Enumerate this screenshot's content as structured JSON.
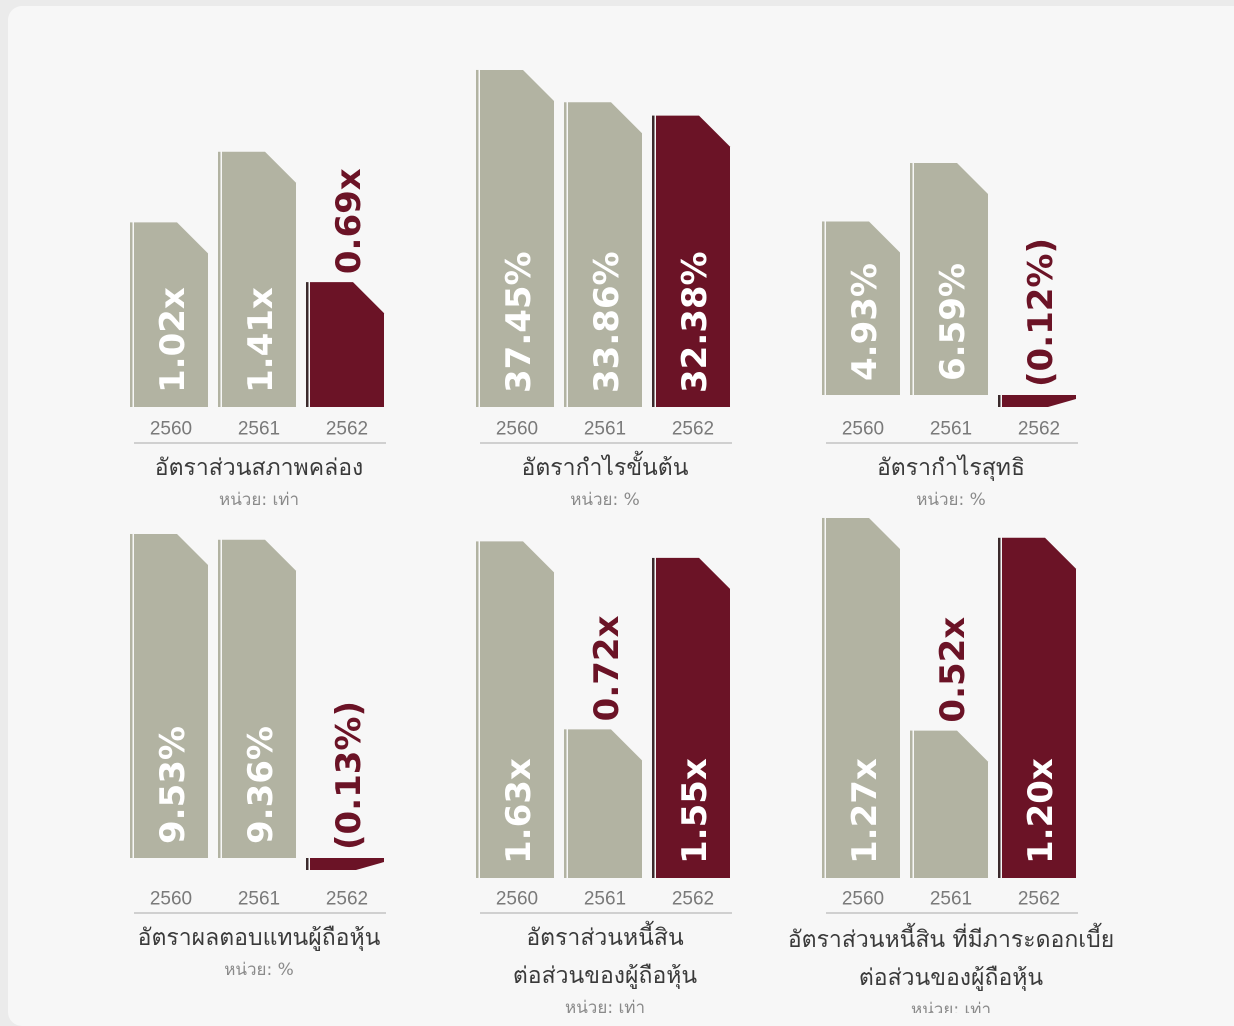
{
  "colors": {
    "past": "#b2b3a2",
    "current": "#6b1326",
    "edge_past": "#b2b3a2",
    "edge_current": "#3b2a2c",
    "axis": "#c4c4c4",
    "value_on_bar": "#ffffff"
  },
  "chart_data": [
    {
      "type": "bar",
      "title": [
        "อัตราส่วนสภาพคล่อง"
      ],
      "unit": "หน่วย: เท่า",
      "categories": [
        "2560",
        "2561",
        "2562"
      ],
      "values": [
        1.02,
        1.41,
        0.69
      ],
      "labels": [
        "1.02x",
        "1.41x",
        "0.69x"
      ],
      "highlight_index": 2
    },
    {
      "type": "bar",
      "title": [
        "อัตรากำไรขั้นต้น"
      ],
      "unit": "หน่วย: %",
      "categories": [
        "2560",
        "2561",
        "2562"
      ],
      "values": [
        37.45,
        33.86,
        32.38
      ],
      "labels": [
        "37.45%",
        "33.86%",
        "32.38%"
      ],
      "highlight_index": 2
    },
    {
      "type": "bar",
      "title": [
        "อัตรากำไรสุทธิ"
      ],
      "unit": "หน่วย: %",
      "categories": [
        "2560",
        "2561",
        "2562"
      ],
      "values": [
        4.93,
        6.59,
        -0.12
      ],
      "labels": [
        "4.93%",
        "6.59%",
        "(0.12%)"
      ],
      "highlight_index": 2
    },
    {
      "type": "bar",
      "title": [
        "อัตราผลตอบแทนผู้ถือหุ้น"
      ],
      "unit": "หน่วย: %",
      "categories": [
        "2560",
        "2561",
        "2562"
      ],
      "values": [
        9.53,
        9.36,
        -0.13
      ],
      "labels": [
        "9.53%",
        "9.36%",
        "(0.13%)"
      ],
      "highlight_index": 2
    },
    {
      "type": "bar",
      "title": [
        "อัตราส่วนหนี้สิน",
        "ต่อส่วนของผู้ถือหุ้น"
      ],
      "unit": "หน่วย: เท่า",
      "categories": [
        "2560",
        "2561",
        "2562"
      ],
      "values": [
        1.63,
        0.72,
        1.55
      ],
      "labels": [
        "1.63x",
        "0.72x",
        "1.55x"
      ],
      "highlight_index": 2
    },
    {
      "type": "bar",
      "title": [
        "อัตราส่วนหนี้สิน ที่มีภาระดอกเบี้ย",
        "ต่อส่วนของผู้ถือหุ้น"
      ],
      "unit": "หน่วย: เท่า",
      "categories": [
        "2560",
        "2561",
        "2562"
      ],
      "values": [
        1.27,
        0.52,
        1.2
      ],
      "labels": [
        "1.27x",
        "0.52x",
        "1.20x"
      ],
      "highlight_index": 2
    }
  ]
}
